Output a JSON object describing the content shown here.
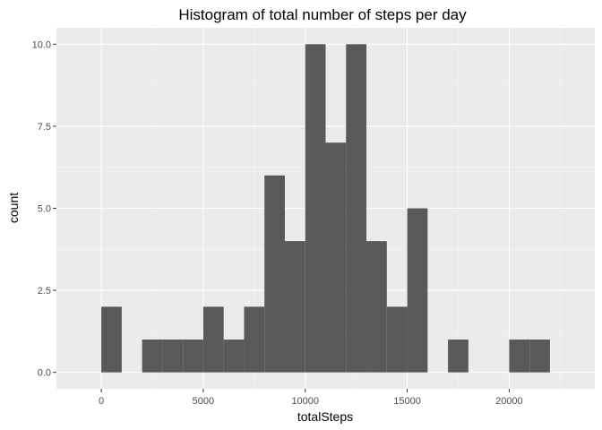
{
  "chart_data": {
    "type": "bar",
    "title": "Histogram of total number of steps per day",
    "xlabel": "totalSteps",
    "ylabel": "count",
    "xlim": [
      -2200,
      24200
    ],
    "ylim": [
      -0.5,
      10.5
    ],
    "x_ticks": [
      0,
      5000,
      10000,
      15000,
      20000
    ],
    "x_tick_labels": [
      "0",
      "5000",
      "10000",
      "15000",
      "20000"
    ],
    "y_ticks": [
      0,
      2.5,
      5,
      7.5,
      10
    ],
    "y_tick_labels": [
      "0.0",
      "2.5",
      "5.0",
      "7.5",
      "10.0"
    ],
    "bin_width": 1000,
    "bins": [
      {
        "x0": 0,
        "x1": 1000,
        "count": 2
      },
      {
        "x0": 1000,
        "x1": 2000,
        "count": 0
      },
      {
        "x0": 2000,
        "x1": 3000,
        "count": 1
      },
      {
        "x0": 3000,
        "x1": 4000,
        "count": 1
      },
      {
        "x0": 4000,
        "x1": 5000,
        "count": 1
      },
      {
        "x0": 5000,
        "x1": 6000,
        "count": 2
      },
      {
        "x0": 6000,
        "x1": 7000,
        "count": 1
      },
      {
        "x0": 7000,
        "x1": 8000,
        "count": 2
      },
      {
        "x0": 8000,
        "x1": 9000,
        "count": 6
      },
      {
        "x0": 9000,
        "x1": 10000,
        "count": 4
      },
      {
        "x0": 10000,
        "x1": 11000,
        "count": 10
      },
      {
        "x0": 11000,
        "x1": 12000,
        "count": 7
      },
      {
        "x0": 12000,
        "x1": 13000,
        "count": 10
      },
      {
        "x0": 13000,
        "x1": 14000,
        "count": 4
      },
      {
        "x0": 14000,
        "x1": 15000,
        "count": 2
      },
      {
        "x0": 15000,
        "x1": 16000,
        "count": 5
      },
      {
        "x0": 16000,
        "x1": 17000,
        "count": 0
      },
      {
        "x0": 17000,
        "x1": 18000,
        "count": 1
      },
      {
        "x0": 18000,
        "x1": 19000,
        "count": 0
      },
      {
        "x0": 19000,
        "x1": 20000,
        "count": 0
      },
      {
        "x0": 20000,
        "x1": 21000,
        "count": 1
      },
      {
        "x0": 21000,
        "x1": 22000,
        "count": 1
      }
    ],
    "grid": true,
    "colors": {
      "panel_background": "#ebebeb",
      "grid_major": "#ffffff",
      "grid_minor": "#f5f5f5",
      "bar_fill": "#595959",
      "tick_mark": "#333333"
    }
  }
}
